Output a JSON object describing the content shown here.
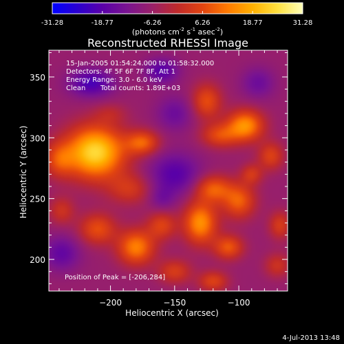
{
  "colorbar": {
    "ticks": [
      "-31.28",
      "-18.77",
      "-6.26",
      "6.26",
      "18.77",
      "31.28"
    ],
    "tick_values": [
      -31.28,
      -18.77,
      -6.26,
      6.26,
      18.77,
      31.28
    ],
    "range": [
      -31.28,
      31.28
    ],
    "units_prefix": "(photons cm",
    "units_exp1": "-2",
    "units_mid": " s",
    "units_exp2": "-1",
    "units_mid2": " asec",
    "units_exp3": "-2",
    "units_suffix": ")",
    "colors": [
      "#0000ff",
      "#2a00d0",
      "#5a00a8",
      "#7a1490",
      "#9a2068",
      "#c02a2a",
      "#e24410",
      "#ff7a00",
      "#ffb000",
      "#ffe040",
      "#ffffb8"
    ]
  },
  "chart_data": {
    "type": "heatmap",
    "title": "Reconstructed RHESSI Image",
    "xlabel": "Heliocentric X (arcsec)",
    "ylabel": "Heliocentric Y (arcsec)",
    "xlim": [
      -248,
      -62
    ],
    "ylim": [
      174,
      372
    ],
    "xticks": [
      -200,
      -150,
      -100
    ],
    "xtick_labels": [
      "−200",
      "−150",
      "−100"
    ],
    "yticks": [
      200,
      250,
      300,
      350
    ],
    "ytick_labels": [
      "200",
      "250",
      "300",
      "350"
    ],
    "peak": {
      "x": -206,
      "y": 284
    },
    "sources": [
      {
        "x": -212,
        "y": 288,
        "sx": 16,
        "sy": 15,
        "amp": 31.28
      },
      {
        "x": -175,
        "y": 296,
        "sx": 9,
        "sy": 7,
        "amp": 16
      },
      {
        "x": -240,
        "y": 282,
        "sx": 8,
        "sy": 10,
        "amp": 12
      },
      {
        "x": -185,
        "y": 258,
        "sx": 12,
        "sy": 9,
        "amp": 10
      },
      {
        "x": -95,
        "y": 310,
        "sx": 10,
        "sy": 9,
        "amp": 22
      },
      {
        "x": -115,
        "y": 302,
        "sx": 10,
        "sy": 7,
        "amp": 13
      },
      {
        "x": -125,
        "y": 330,
        "sx": 8,
        "sy": 10,
        "amp": 14
      },
      {
        "x": -75,
        "y": 285,
        "sx": 7,
        "sy": 8,
        "amp": 12
      },
      {
        "x": -120,
        "y": 258,
        "sx": 10,
        "sy": 8,
        "amp": 16
      },
      {
        "x": -100,
        "y": 248,
        "sx": 9,
        "sy": 10,
        "amp": 16
      },
      {
        "x": -90,
        "y": 270,
        "sx": 6,
        "sy": 6,
        "amp": 10
      },
      {
        "x": -130,
        "y": 230,
        "sx": 9,
        "sy": 12,
        "amp": 22
      },
      {
        "x": -108,
        "y": 210,
        "sx": 8,
        "sy": 7,
        "amp": 15
      },
      {
        "x": -68,
        "y": 228,
        "sx": 6,
        "sy": 8,
        "amp": 11
      },
      {
        "x": -70,
        "y": 195,
        "sx": 7,
        "sy": 7,
        "amp": 9
      },
      {
        "x": -180,
        "y": 210,
        "sx": 10,
        "sy": 10,
        "amp": 20
      },
      {
        "x": -160,
        "y": 228,
        "sx": 8,
        "sy": 8,
        "amp": 12
      },
      {
        "x": -210,
        "y": 225,
        "sx": 10,
        "sy": 9,
        "amp": 14
      },
      {
        "x": -238,
        "y": 240,
        "sx": 7,
        "sy": 8,
        "amp": 9
      },
      {
        "x": -150,
        "y": 190,
        "sx": 9,
        "sy": 7,
        "amp": 11
      },
      {
        "x": -120,
        "y": 182,
        "sx": 8,
        "sy": 6,
        "amp": 12
      },
      {
        "x": -200,
        "y": 320,
        "sx": 9,
        "sy": 6,
        "amp": 5
      },
      {
        "x": -215,
        "y": 345,
        "sx": 12,
        "sy": 8,
        "amp": -14
      },
      {
        "x": -150,
        "y": 270,
        "sx": 14,
        "sy": 12,
        "amp": -12
      },
      {
        "x": -150,
        "y": 320,
        "sx": 10,
        "sy": 10,
        "amp": -8
      },
      {
        "x": -238,
        "y": 205,
        "sx": 10,
        "sy": 10,
        "amp": -10
      },
      {
        "x": -160,
        "y": 355,
        "sx": 9,
        "sy": 7,
        "amp": -12
      },
      {
        "x": -85,
        "y": 345,
        "sx": 9,
        "sy": 9,
        "amp": -8
      },
      {
        "x": -160,
        "y": 250,
        "sx": 7,
        "sy": 7,
        "amp": -6
      }
    ]
  },
  "info": {
    "line1": "15-Jan-2005 01:54:24.000 to 01:58:32.000",
    "line2": "Detectors: 4F 5F 6F 7F 8F, Att 1",
    "line3": "Energy Range: 3.0 - 6.0 keV",
    "line4_a": "Clean",
    "line4_b": "Total counts: 1.89E+03"
  },
  "peak_label": "Position of Peak = [-206,284]",
  "footer_date": "4-Jul-2013 13:48"
}
